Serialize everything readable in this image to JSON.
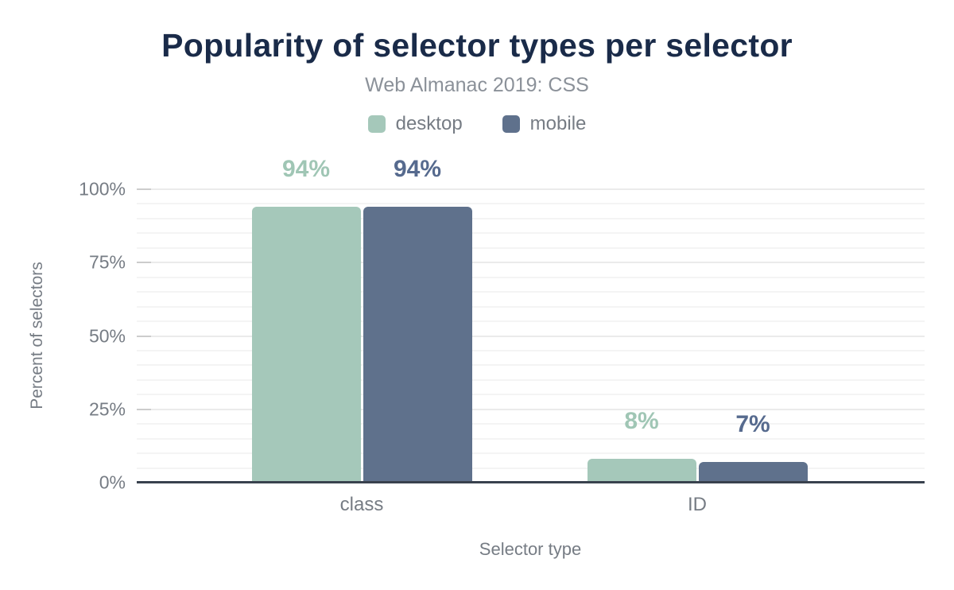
{
  "title": "Popularity of selector types per selector",
  "subtitle": "Web Almanac 2019: CSS",
  "colors": {
    "title_color": "#1a2b49",
    "subtitle_color": "#8b9199",
    "axis_text": "#767c84",
    "baseline": "#39424e",
    "grid_major": "#ebebeb",
    "grid_minor": "#f4f4f4",
    "tick_mark": "#cccccc",
    "background": "#ffffff",
    "desktop": "#a5c8ba",
    "mobile": "#5f718c"
  },
  "chart_data": {
    "type": "bar",
    "title": "Popularity of selector types per selector",
    "subtitle": "Web Almanac 2019: CSS",
    "categories": [
      "class",
      "ID"
    ],
    "series": [
      {
        "name": "desktop",
        "color": "#a5c8ba",
        "label_color": "#a0c6b5",
        "values": [
          94,
          8
        ],
        "labels": [
          "94%",
          "8%"
        ]
      },
      {
        "name": "mobile",
        "color": "#5f718c",
        "label_color": "#566a8e",
        "values": [
          94,
          7
        ],
        "labels": [
          "94%",
          "7%"
        ]
      }
    ],
    "xlabel": "Selector type",
    "ylabel": "Percent of selectors",
    "ylim": [
      0,
      100
    ],
    "yticks": [
      {
        "value": 0,
        "label": "0%"
      },
      {
        "value": 25,
        "label": "25%"
      },
      {
        "value": 50,
        "label": "50%"
      },
      {
        "value": 75,
        "label": "75%"
      },
      {
        "value": 100,
        "label": "100%"
      }
    ],
    "grid": {
      "orientation": "horizontal",
      "minor_step_pct": 5,
      "major_step_pct": 25
    },
    "legend_position": "top"
  }
}
